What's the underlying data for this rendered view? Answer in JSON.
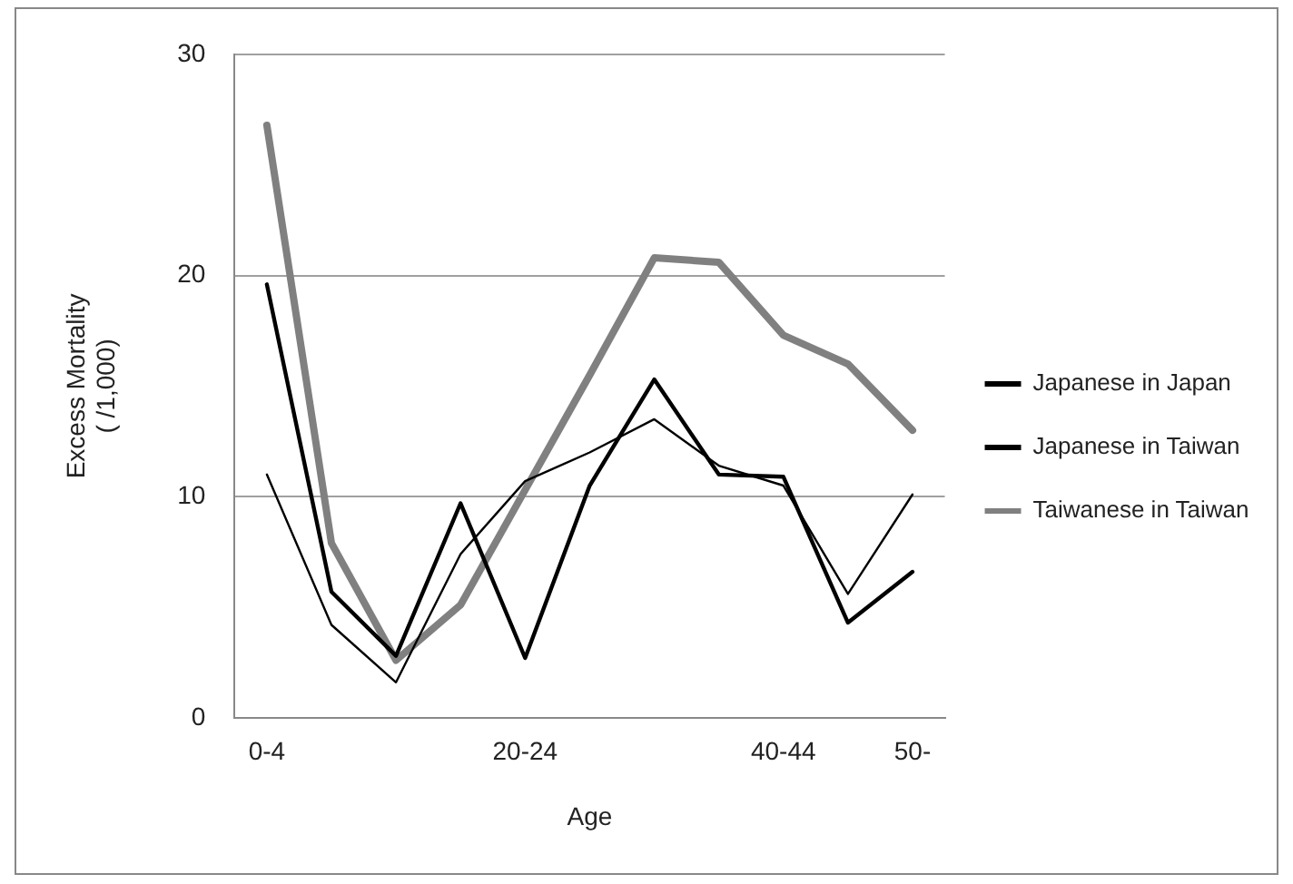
{
  "chart_data": {
    "type": "line",
    "xlabel": "Age",
    "ylabel": "Excess Mortality\n( /1,000)",
    "categories": [
      "0-4",
      null,
      null,
      null,
      "20-24",
      null,
      null,
      null,
      "40-44",
      null,
      "50-"
    ],
    "ylim": [
      0,
      30
    ],
    "yticks": [
      0,
      10,
      20,
      30
    ],
    "grid": "y",
    "legend": "right",
    "marker": "none",
    "line_style": "solid",
    "series": [
      {
        "name": "Japanese in Japan",
        "color": "#000000",
        "values": [
          11.0,
          4.2,
          1.6,
          7.4,
          10.7,
          12.0,
          13.5,
          11.4,
          10.5,
          5.6,
          10.1
        ]
      },
      {
        "name": "Japanese in Taiwan",
        "color": "#000000",
        "values": [
          19.6,
          5.7,
          2.8,
          9.7,
          2.7,
          10.5,
          15.3,
          11.0,
          10.9,
          4.3,
          6.6
        ]
      },
      {
        "name": "Taiwanese in Taiwan",
        "color": "#808080",
        "values": [
          26.8,
          7.9,
          2.6,
          5.1,
          10.3,
          15.5,
          20.8,
          20.6,
          17.3,
          16.0,
          13.0
        ]
      }
    ]
  }
}
